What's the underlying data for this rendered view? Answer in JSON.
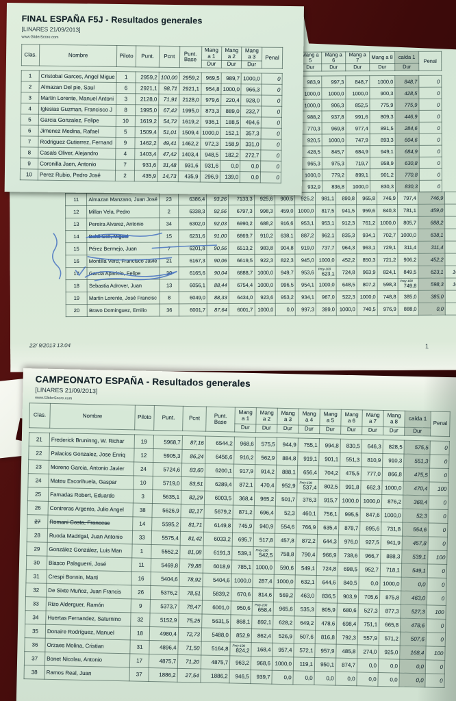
{
  "colors": {
    "background": "#451010",
    "paper": "#d8e9d9",
    "paper_under": "#d3e5d5",
    "ink": "#22333b",
    "pen_blue": "#3f6cc0",
    "caida_shade": "#9fb3a4"
  },
  "page_top": {
    "title": "FINAL ESPAÑA F5J - Resultados generales",
    "subtitle": "[LINARES 21/09/2013]",
    "website": "www.GliderScore.com",
    "header": {
      "clas": "Clas.",
      "nombre": "Nombre",
      "piloto": "Piloto",
      "punt": "Punt.",
      "pcnt": "Pcnt",
      "base": "Punt. Base",
      "mangs": [
        "Mang a 1",
        "Mang a 2",
        "Mang a 3"
      ],
      "dur": "Dur",
      "penal": "Penal"
    },
    "rows": [
      {
        "c": "1",
        "n": "Cristobal Garces, Angel Migue",
        "p": "1",
        "pt": "2959,2",
        "pc": "100,00",
        "b": "2959,2",
        "m": [
          "969,5",
          "989,7",
          "1000,0"
        ],
        "pe": "0"
      },
      {
        "c": "2",
        "n": "Almazan Del pie, Saul",
        "p": "6",
        "pt": "2921,1",
        "pc": "98,71",
        "b": "2921,1",
        "m": [
          "954,8",
          "1000,0",
          "966,3"
        ],
        "pe": "0"
      },
      {
        "c": "3",
        "n": "Martin Lorente, Manuel Antoni",
        "p": "3",
        "pt": "2128,0",
        "pc": "71,91",
        "b": "2128,0",
        "m": [
          "979,6",
          "220,4",
          "928,0"
        ],
        "pe": "0"
      },
      {
        "c": "4",
        "n": "Iglesias Guzman, Francisco J",
        "p": "8",
        "pt": "1995,0",
        "pc": "67,42",
        "b": "1995,0",
        "m": [
          "873,3",
          "889,0",
          "232,7"
        ],
        "pe": "0"
      },
      {
        "c": "5",
        "n": "Garcia Gonzalez, Felipe",
        "p": "10",
        "pt": "1619,2",
        "pc": "54,72",
        "b": "1619,2",
        "m": [
          "936,1",
          "188,5",
          "494,6"
        ],
        "pe": "0"
      },
      {
        "c": "6",
        "n": "Jimenez Medina, Rafael",
        "p": "5",
        "pt": "1509,4",
        "pc": "51,01",
        "b": "1509,4",
        "m": [
          "1000,0",
          "152,1",
          "357,3"
        ],
        "pe": "0"
      },
      {
        "c": "7",
        "n": "Rodriguez Gutierrez, Fernand",
        "p": "9",
        "pt": "1462,2",
        "pc": "49,41",
        "b": "1462,2",
        "m": [
          "972,3",
          "158,9",
          "331,0"
        ],
        "pe": "0"
      },
      {
        "c": "8",
        "n": "Casals Oliver, Alejandro",
        "p": "4",
        "pt": "1403,4",
        "pc": "47,42",
        "b": "1403,4",
        "m": [
          "948,5",
          "182,2",
          "272,7"
        ],
        "pe": "0"
      },
      {
        "c": "9",
        "n": "Coronilla Jaen, Antonio",
        "p": "7",
        "pt": "931,6",
        "pc": "31,48",
        "b": "931,6",
        "m": [
          "931,6",
          "0,0",
          "0,0"
        ],
        "pe": "0"
      },
      {
        "c": "10",
        "n": "Perez Rubio, Pedro José",
        "p": "2",
        "pt": "435,9",
        "pc": "14,73",
        "b": "435,9",
        "m": [
          "296,9",
          "139,0",
          "0,0"
        ],
        "pe": "0"
      }
    ]
  },
  "page_under": {
    "fragment": {
      "header": {
        "mangs": [
          "Mang a 5",
          "Mang a 6",
          "Mang a 7",
          "Mang a 8"
        ],
        "caida": "caída 1",
        "dur": "Dur",
        "penal": "Penal"
      },
      "rows": [
        [
          "983,9",
          "997,3",
          "848,7",
          "1000,0",
          "848,7",
          "0"
        ],
        [
          "1000,0",
          "1000,0",
          "1000,0",
          "900,3",
          "428,5",
          "0"
        ],
        [
          "1000,0",
          "906,3",
          "852,5",
          "775,9",
          "775,9",
          "0"
        ],
        [
          "988,2",
          "937,8",
          "991,6",
          "809,3",
          "446,9",
          "0"
        ],
        [
          "770,3",
          "969,8",
          "977,4",
          "891,5",
          "284,6",
          "0"
        ],
        [
          "920,5",
          "1000,0",
          "747,9",
          "893,3",
          "604,6",
          "0"
        ],
        [
          "428,5",
          "845,7",
          "684,9",
          "949,1",
          "684,9",
          "0"
        ],
        [
          "965,3",
          "975,3",
          "719,7",
          "958,9",
          "630,8",
          "0"
        ],
        [
          "1000,0",
          "779,2",
          "899,1",
          "901,2",
          "770,8",
          "0"
        ],
        [
          "932,9",
          "836,8",
          "1000,0",
          "830,3",
          "830,3",
          "0"
        ]
      ]
    },
    "rows": [
      {
        "c": "11",
        "n": "Almazan Manzano, Juan José",
        "p": "23",
        "pt": "6386,4",
        "pc": "93,26",
        "b": "7133,3",
        "m": [
          "925,6",
          "900,5",
          "925,2",
          "981,1",
          "890,8",
          "965,8",
          "746,9",
          "797,4"
        ],
        "ca": "746,9",
        "pe": "0"
      },
      {
        "c": "12",
        "n": "Millan Vela, Pedro",
        "p": "2",
        "pt": "6338,3",
        "pc": "92,56",
        "b": "6797,3",
        "m": [
          "998,3",
          "459,0",
          "1000,0",
          "817,5",
          "941,5",
          "959,6",
          "840,3",
          "781,1"
        ],
        "ca": "459,0",
        "pe": "0"
      },
      {
        "c": "13",
        "n": "Pereira Alvarez, Antonio",
        "p": "34",
        "pt": "6302,0",
        "pc": "92,03",
        "b": "6990,2",
        "m": [
          "688,2",
          "916,6",
          "953,1",
          "953,1",
          "912,3",
          "761,2",
          "1000,0",
          "805,7"
        ],
        "ca": "688,2",
        "pe": "0"
      },
      {
        "c": "14",
        "n": "Baldi Coll, Miguel",
        "p": "15",
        "pt": "6231,6",
        "pc": "91,00",
        "b": "6869,7",
        "m": [
          "910,2",
          "638,1",
          "887,2",
          "962,1",
          "835,3",
          "934,1",
          "702,7",
          "1000,0"
        ],
        "ca": "638,1",
        "pe": "0",
        "struck": "pen"
      },
      {
        "c": "15",
        "n": "Pérez Bermejo, Juan",
        "p": "7",
        "pt": "6201,8",
        "pc": "90,56",
        "b": "6513,2",
        "m": [
          "983,8",
          "904,8",
          "919,0",
          "737,7",
          "964,3",
          "963,1",
          "729,1",
          "311,4"
        ],
        "ca": "311,4",
        "pe": "0"
      },
      {
        "c": "16",
        "n": "Montilla Verd, Francisco Javie",
        "p": "21",
        "pt": "6167,3",
        "pc": "90,06",
        "b": "6619,5",
        "m": [
          "922,3",
          "822,3",
          "945,0",
          "1000,0",
          "452,2",
          "850,3",
          "721,2",
          "906,2"
        ],
        "ca": "452,2",
        "pe": "0"
      },
      {
        "c": "17",
        "n": "Garcia Aparicio, Felipe",
        "p": "30",
        "pt": "6165,6",
        "pc": "90,04",
        "b": "6888,7",
        "m": [
          "1000,0",
          "949,7",
          "953,6",
          "Pnty-100 623,1",
          "724,8",
          "963,9",
          "824,1",
          "849,5"
        ],
        "ca": "623,1",
        "pe": "100"
      },
      {
        "c": "18",
        "n": "Sebastia Adrover, Juan",
        "p": "13",
        "pt": "6056,1",
        "pc": "88,44",
        "b": "6754,4",
        "m": [
          "1000,0",
          "996,5",
          "954,1",
          "1000,0",
          "648,5",
          "807,2",
          "598,3",
          "Pnty-100 749,8"
        ],
        "ca": "598,3",
        "pe": "100"
      },
      {
        "c": "19",
        "n": "Martin Lorente, José Francisc",
        "p": "8",
        "pt": "6049,0",
        "pc": "88,33",
        "b": "6434,0",
        "m": [
          "923,6",
          "953,2",
          "934,1",
          "967,0",
          "522,3",
          "1000,0",
          "748,8",
          "385,0"
        ],
        "ca": "385,0",
        "pe": "0"
      },
      {
        "c": "20",
        "n": "Bravo Dominguez, Emilio",
        "p": "36",
        "pt": "6001,7",
        "pc": "87,64",
        "b": "6001,7",
        "m": [
          "1000,0",
          "0,0",
          "997,3",
          "399,0",
          "1000,0",
          "740,5",
          "976,9",
          "888,0"
        ],
        "ca": "0,0",
        "pe": "0"
      }
    ],
    "footer_datetime": "22/ 9/2013 13:04",
    "footer_page": "1"
  },
  "page_bottom": {
    "title": "CAMPEONATO ESPAÑA - Resultados generales",
    "subtitle": "[LINARES 21/09/2013]",
    "website": "www.GliderScore.com",
    "header": {
      "clas": "Clas.",
      "nombre": "Nombre",
      "piloto": "Piloto",
      "punt": "Punt.",
      "pcnt": "Pcnt",
      "base": "Punt. Base",
      "mangs": [
        "Mang a 1",
        "Mang a 2",
        "Mang a 3",
        "Mang a 4",
        "Mang a 5",
        "Mang a 6",
        "Mang a 7",
        "Mang a 8"
      ],
      "caida": "caída 1",
      "dur": "Dur",
      "penal": "Penal"
    },
    "rows": [
      {
        "c": "21",
        "n": "Frederick Bruninng, W. Richar",
        "p": "19",
        "pt": "5968,7",
        "pc": "87,16",
        "b": "6544,2",
        "m": [
          "968,6",
          "575,5",
          "944,9",
          "755,1",
          "994,8",
          "830,5",
          "646,3",
          "828,5"
        ],
        "ca": "575,5",
        "pe": "0"
      },
      {
        "c": "22",
        "n": "Palacios Gonzalez, Jose Enriq",
        "p": "12",
        "pt": "5905,3",
        "pc": "86,24",
        "b": "6456,6",
        "m": [
          "916,2",
          "562,9",
          "884,8",
          "919,1",
          "901,1",
          "551,3",
          "810,9",
          "910,3"
        ],
        "ca": "551,3",
        "pe": "0"
      },
      {
        "c": "23",
        "n": "Moreno Garcia, Antonio Javier",
        "p": "24",
        "pt": "5724,6",
        "pc": "83,60",
        "b": "6200,1",
        "m": [
          "917,9",
          "914,2",
          "888,1",
          "656,4",
          "704,2",
          "475,5",
          "777,0",
          "866,8"
        ],
        "ca": "475,5",
        "pe": "0"
      },
      {
        "c": "24",
        "n": "Mateu Escorihuela, Gaspar",
        "p": "10",
        "pt": "5719,0",
        "pc": "83,51",
        "b": "6289,4",
        "m": [
          "872,1",
          "470,4",
          "952,9",
          "Pnty-100 537,4",
          "802,5",
          "991,8",
          "662,3",
          "1000,0"
        ],
        "ca": "470,4",
        "pe": "100"
      },
      {
        "c": "25",
        "n": "Famadas Robert, Eduardo",
        "p": "3",
        "pt": "5635,1",
        "pc": "82,29",
        "b": "6003,5",
        "m": [
          "368,4",
          "965,2",
          "501,7",
          "376,3",
          "915,7",
          "1000,0",
          "1000,0",
          "876,2"
        ],
        "ca": "368,4",
        "pe": "0"
      },
      {
        "c": "26",
        "n": "Contreras Argento, Julio Angel",
        "p": "38",
        "pt": "5626,9",
        "pc": "82,17",
        "b": "5679,2",
        "m": [
          "871,2",
          "696,4",
          "52,3",
          "460,1",
          "756,1",
          "995,5",
          "847,6",
          "1000,0"
        ],
        "ca": "52,3",
        "pe": "0"
      },
      {
        "c": "27",
        "n": "Romani Costa, Francesc",
        "p": "14",
        "pt": "5595,2",
        "pc": "81,71",
        "b": "6149,8",
        "m": [
          "745,9",
          "940,9",
          "554,6",
          "766,9",
          "635,4",
          "878,7",
          "895,6",
          "731,8"
        ],
        "ca": "554,6",
        "pe": "0",
        "struck": "dark"
      },
      {
        "c": "28",
        "n": "Ruoda Madrigal, Juan Antonio",
        "p": "33",
        "pt": "5575,4",
        "pc": "81,42",
        "b": "6033,2",
        "m": [
          "695,7",
          "517,8",
          "457,8",
          "872,2",
          "644,3",
          "976,0",
          "927,5",
          "941,9"
        ],
        "ca": "457,8",
        "pe": "0"
      },
      {
        "c": "29",
        "n": "González González, Luis Man",
        "p": "1",
        "pt": "5552,2",
        "pc": "81,08",
        "b": "6191,3",
        "m": [
          "539,1",
          "Pnty-100 542,5",
          "758,8",
          "790,4",
          "966,9",
          "738,6",
          "966,7",
          "888,3"
        ],
        "ca": "539,1",
        "pe": "100"
      },
      {
        "c": "30",
        "n": "Blasco Palaguerri, José",
        "p": "11",
        "pt": "5469,8",
        "pc": "79,88",
        "b": "6018,9",
        "m": [
          "785,1",
          "1000,0",
          "590,6",
          "549,1",
          "724,8",
          "698,5",
          "952,7",
          "718,1"
        ],
        "ca": "549,1",
        "pe": "0"
      },
      {
        "c": "31",
        "n": "Crespi Bonnin, Marti",
        "p": "16",
        "pt": "5404,6",
        "pc": "78,92",
        "b": "5404,6",
        "m": [
          "1000,0",
          "287,4",
          "1000,0",
          "632,1",
          "644,6",
          "840,5",
          "0,0",
          "1000,0"
        ],
        "ca": "0,0",
        "pe": "0"
      },
      {
        "c": "32",
        "n": "De Sixte Muñoz, Juan Francis",
        "p": "26",
        "pt": "5376,2",
        "pc": "78,51",
        "b": "5839,2",
        "m": [
          "670,6",
          "814,6",
          "569,2",
          "463,0",
          "836,5",
          "903,9",
          "705,6",
          "875,8"
        ],
        "ca": "463,0",
        "pe": "0"
      },
      {
        "c": "33",
        "n": "Rizo Alderguer, Ramón",
        "p": "9",
        "pt": "5373,7",
        "pc": "78,47",
        "b": "6001,0",
        "m": [
          "950,6",
          "Pnty-100 658,4",
          "965,6",
          "535,3",
          "805,9",
          "680,6",
          "527,3",
          "877,3"
        ],
        "ca": "527,3",
        "pe": "100"
      },
      {
        "c": "34",
        "n": "Huertas Fernandez, Saturnino",
        "p": "32",
        "pt": "5152,9",
        "pc": "75,25",
        "b": "5631,5",
        "m": [
          "868,1",
          "892,1",
          "628,2",
          "649,2",
          "478,6",
          "698,4",
          "751,1",
          "665,8"
        ],
        "ca": "478,6",
        "pe": "0"
      },
      {
        "c": "35",
        "n": "Donaire Rodríguez, Manuel",
        "p": "18",
        "pt": "4980,4",
        "pc": "72,73",
        "b": "5488,0",
        "m": [
          "852,9",
          "862,4",
          "526,9",
          "507,6",
          "816,8",
          "792,3",
          "557,9",
          "571,2"
        ],
        "ca": "507,6",
        "pe": "0"
      },
      {
        "c": "36",
        "n": "Orzaes Molina, Cristian",
        "p": "31",
        "pt": "4896,4",
        "pc": "71,50",
        "b": "5164,8",
        "m": [
          "Pnty-100 824,2",
          "168,4",
          "957,4",
          "572,1",
          "957,9",
          "485,8",
          "274,0",
          "925,0"
        ],
        "ca": "168,4",
        "pe": "100"
      },
      {
        "c": "37",
        "n": "Bonet Nicolau, Antonio",
        "p": "17",
        "pt": "4875,7",
        "pc": "71,20",
        "b": "4875,7",
        "m": [
          "963,2",
          "968,6",
          "1000,0",
          "119,1",
          "950,1",
          "874,7",
          "0,0",
          "0,0"
        ],
        "ca": "0,0",
        "pe": "0"
      },
      {
        "c": "38",
        "n": "Ramos Real, Juan",
        "p": "37",
        "pt": "1886,2",
        "pc": "27,54",
        "b": "1886,2",
        "m": [
          "946,5",
          "939,7",
          "0,0",
          "0,0",
          "0,0",
          "0,0",
          "0,0",
          "0,0"
        ],
        "ca": "0,0",
        "pe": "0"
      }
    ]
  }
}
